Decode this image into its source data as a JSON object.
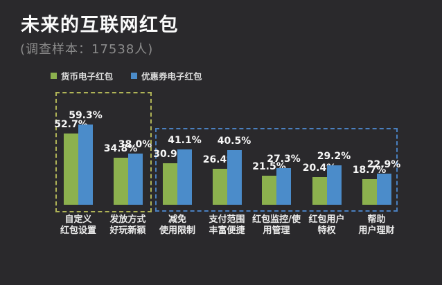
{
  "page": {
    "background_color": "#2a292c",
    "title": "未来的互联网红包",
    "subtitle": "(调查样本：17538人)"
  },
  "legend": {
    "items": [
      {
        "key": "monetary",
        "label": "货币电子红包",
        "color": "#8cb14e"
      },
      {
        "key": "coupon",
        "label": "优惠券电子红包",
        "color": "#4b8cca"
      }
    ]
  },
  "chart_data": {
    "type": "bar",
    "title": "未来的互联网红包",
    "subtitle": "(调查样本：17538人)",
    "value_suffix": "%",
    "ylim": [
      0,
      65
    ],
    "grid": false,
    "legend_position": "top-left",
    "categories": [
      "自定义\n红包设置",
      "发放方式\n好玩新颖",
      "减免\n使用限制",
      "支付范围\n丰富便捷",
      "红包监控/使\n用管理",
      "红包用户\n特权",
      "帮助\n用户理财"
    ],
    "series": [
      {
        "name": "货币电子红包",
        "key": "monetary",
        "color": "#8cb14e",
        "values": [
          52.7,
          34.8,
          30.9,
          26.4,
          21.5,
          20.4,
          18.7
        ]
      },
      {
        "name": "优惠券电子红包",
        "key": "coupon",
        "color": "#4b8cca",
        "values": [
          59.3,
          38.0,
          41.1,
          40.5,
          27.3,
          29.2,
          22.9
        ]
      }
    ],
    "highlight_groups": [
      {
        "name": "dashed-box-left",
        "category_span": [
          0,
          1
        ],
        "border_color": "#b0b457"
      },
      {
        "name": "dashed-box-right",
        "category_span": [
          2,
          6
        ],
        "border_color": "#4a80c0"
      }
    ]
  }
}
